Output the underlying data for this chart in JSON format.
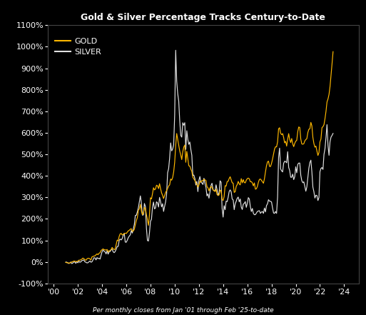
{
  "title": "Gold & Silver Percentage Tracks Century-to-Date",
  "subtitle": "Per monthly closes from Jan '01 through Feb '25-to-date",
  "background_color": "#000000",
  "text_color": "#ffffff",
  "gold_color": "#FFB800",
  "silver_color": "#e0e0e0",
  "ylim": [
    -100,
    1100
  ],
  "yticks": [
    -100,
    0,
    100,
    200,
    300,
    400,
    500,
    600,
    700,
    800,
    900,
    1000,
    1100
  ],
  "xtick_labels": [
    "'00",
    "'02",
    "'04",
    "'06",
    "'08",
    "'10",
    "'12",
    "'14",
    "'16",
    "'18",
    "'20",
    "'22",
    "'24"
  ],
  "xtick_years": [
    2000,
    2002,
    2004,
    2006,
    2008,
    2010,
    2012,
    2014,
    2016,
    2018,
    2020,
    2022,
    2024
  ],
  "gold_pct": [
    -2.2,
    -3.3,
    -3.7,
    -4.8,
    -5.5,
    -1.8,
    -0.4,
    1.8,
    4.0,
    4.0,
    1.5,
    2.6,
    3.3,
    8.5,
    8.1,
    10.7,
    13.2,
    18.0,
    15.1,
    10.7,
    7.7,
    14.3,
    16.9,
    17.3,
    14.0,
    9.2,
    23.5,
    25.7,
    27.6,
    28.3,
    33.5,
    37.5,
    33.8,
    40.4,
    43.0,
    53.3,
    57.0,
    60.7,
    57.0,
    56.6,
    55.1,
    58.1,
    46.3,
    52.6,
    53.0,
    58.1,
    67.6,
    61.0,
    57.0,
    60.7,
    81.6,
    101.5,
    98.5,
    119.1,
    130.9,
    132.7,
    125.7,
    128.3,
    132.4,
    133.8,
    132.4,
    138.6,
    144.5,
    147.1,
    152.2,
    154.4,
    142.3,
    144.5,
    151.5,
    173.2,
    192.3,
    206.3,
    239.7,
    247.1,
    267.6,
    236.8,
    220.2,
    226.8,
    252.9,
    249.6,
    219.9,
    196.3,
    170.2,
    219.5,
    298.5,
    292.8,
    316.9,
    344.9,
    334.9,
    339.7,
    356.6,
    353.7,
    340.8,
    363.6,
    340.8,
    320.9,
    309.9,
    294.5,
    309.2,
    322.8,
    331.6,
    341.5,
    353.3,
    357.7,
    385.3,
    380.1,
    392.3,
    418.4,
    463.0,
    540.4,
    596.7,
    570.2,
    542.3,
    515.8,
    497.4,
    475.7,
    511.8,
    533.5,
    543.4,
    463.0,
    514.0,
    480.1,
    447.1,
    445.2,
    431.6,
    420.2,
    393.4,
    386.4,
    378.7,
    367.6,
    361.0,
    348.2,
    357.0,
    375.7,
    371.3,
    377.6,
    378.3,
    383.5,
    381.6,
    378.3,
    350.0,
    344.5,
    330.5,
    344.1,
    350.7,
    347.1,
    334.6,
    331.6,
    327.2,
    338.6,
    313.2,
    309.2,
    311.4,
    333.8,
    331.2,
    290.4,
    285.7,
    303.3,
    354.4,
    352.2,
    373.2,
    374.6,
    387.5,
    396.0,
    381.6,
    368.0,
    366.2,
    323.2,
    326.5,
    351.1,
    359.6,
    374.3,
    362.1,
    358.1,
    387.1,
    367.6,
    382.7,
    369.1,
    367.6,
    380.1,
    387.1,
    389.7,
    386.0,
    372.8,
    373.2,
    367.3,
    353.7,
    367.3,
    338.2,
    340.4,
    351.1,
    370.6,
    383.5,
    385.3,
    379.4,
    372.8,
    365.8,
    387.1,
    418.8,
    446.7,
    464.7,
    468.4,
    444.1,
    443.4,
    457.7,
    477.6,
    501.1,
    525.0,
    535.3,
    534.9,
    557.4,
    618.8,
    623.5,
    598.5,
    591.2,
    596.3,
    578.7,
    553.3,
    560.7,
    538.2,
    570.2,
    596.3,
    569.5,
    554.8,
    573.5,
    548.5,
    535.7,
    551.1,
    561.0,
    565.1,
    605.5,
    627.2,
    624.3,
    571.3,
    548.5,
    547.1,
    549.3,
    562.5,
    568.8,
    572.8,
    601.1,
    616.5,
    618.4,
    648.5,
    632.4,
    578.7,
    550.4,
    533.5,
    538.2,
    515.4,
    494.9,
    507.7,
    557.4,
    571.3,
    623.9,
    628.7,
    637.9,
    665.8,
    700.0,
    743.4,
    757.4,
    778.7,
    815.4,
    867.6,
    921.3,
    977.2
  ],
  "silver_pct": [
    -0.7,
    -0.7,
    -4.1,
    -7.0,
    -4.8,
    -0.4,
    -7.4,
    -4.8,
    -0.2,
    -0.2,
    -6.5,
    1.7,
    -3.7,
    3.3,
    -1.3,
    0.7,
    6.5,
    8.1,
    9.4,
    0.7,
    -1.1,
    -4.4,
    -3.5,
    0.9,
    4.4,
    -1.1,
    0.9,
    9.6,
    19.6,
    19.0,
    9.6,
    20.3,
    15.7,
    17.4,
    13.5,
    30.1,
    47.3,
    55.8,
    49.9,
    47.5,
    37.5,
    52.3,
    36.6,
    47.3,
    48.6,
    56.4,
    59.7,
    47.5,
    43.4,
    48.6,
    59.3,
    71.7,
    72.5,
    100.4,
    106.5,
    102.4,
    109.0,
    123.9,
    133.1,
    92.4,
    91.7,
    101.1,
    112.9,
    120.3,
    126.1,
    146.6,
    134.4,
    153.8,
    174.3,
    216.1,
    217.2,
    232.9,
    252.3,
    280.2,
    307.0,
    273.0,
    217.6,
    218.7,
    271.7,
    257.1,
    156.4,
    99.6,
    97.4,
    135.1,
    188.7,
    198.5,
    254.5,
    278.4,
    246.8,
    250.8,
    279.5,
    274.3,
    255.3,
    300.0,
    280.8,
    256.0,
    270.6,
    234.8,
    258.0,
    279.3,
    316.3,
    414.8,
    434.0,
    482.6,
    553.2,
    516.1,
    524.7,
    544.2,
    682.6,
    983.7,
    840.5,
    782.4,
    747.5,
    656.8,
    587.8,
    580.2,
    646.8,
    635.3,
    647.1,
    523.1,
    609.8,
    569.5,
    546.4,
    557.3,
    523.1,
    495.9,
    401.5,
    403.9,
    388.0,
    357.5,
    374.3,
    327.0,
    379.3,
    397.0,
    369.1,
    367.5,
    359.9,
    388.8,
    365.6,
    347.1,
    307.0,
    316.3,
    296.3,
    326.3,
    355.1,
    365.8,
    336.0,
    331.2,
    329.8,
    358.4,
    335.9,
    308.7,
    321.0,
    377.1,
    370.2,
    250.1,
    208.5,
    261.4,
    243.1,
    282.4,
    280.2,
    300.3,
    327.0,
    334.9,
    326.1,
    292.4,
    288.5,
    243.1,
    270.4,
    282.1,
    296.1,
    301.5,
    279.3,
    292.6,
    255.1,
    243.8,
    268.4,
    272.3,
    280.4,
    253.8,
    272.6,
    299.0,
    292.6,
    257.3,
    234.4,
    248.6,
    226.2,
    219.5,
    219.9,
    226.9,
    234.4,
    237.0,
    238.1,
    225.8,
    231.9,
    234.4,
    225.8,
    250.5,
    232.7,
    262.1,
    269.9,
    289.3,
    282.6,
    281.9,
    278.6,
    251.5,
    227.7,
    225.8,
    234.4,
    225.8,
    301.1,
    486.1,
    529.0,
    432.2,
    423.7,
    418.3,
    458.2,
    468.0,
    466.4,
    460.8,
    512.4,
    439.4,
    424.6,
    393.8,
    393.5,
    408.1,
    382.6,
    396.4,
    442.3,
    414.2,
    453.4,
    459.5,
    459.5,
    403.1,
    378.1,
    368.2,
    372.3,
    351.5,
    328.8,
    348.1,
    391.3,
    435.3,
    461.7,
    473.0,
    419.0,
    347.9,
    326.6,
    297.0,
    310.2,
    308.5,
    285.5,
    299.1,
    419.2,
    434.4,
    438.7,
    430.0,
    499.8,
    526.4,
    578.6,
    638.1,
    541.0,
    495.5,
    559.3,
    580.4,
    588.0,
    597.2
  ]
}
